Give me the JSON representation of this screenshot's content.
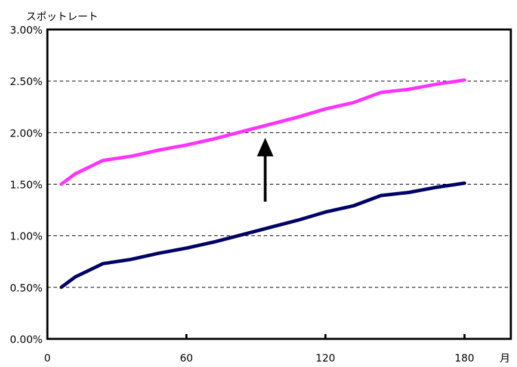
{
  "chart_data": {
    "type": "line",
    "ylabel": "スポットレート",
    "xunit": "月",
    "xlim": [
      0,
      200
    ],
    "ylim": [
      0,
      3.0
    ],
    "xticks": [
      0,
      60,
      120,
      180
    ],
    "yticks": [
      0.0,
      0.5,
      1.0,
      1.5,
      2.0,
      2.5,
      3.0
    ],
    "ytick_labels": [
      "0.00%",
      "0.50%",
      "1.00%",
      "1.50%",
      "2.00%",
      "2.50%",
      "3.00%"
    ],
    "grid": "horizontal dashed",
    "annotation": "upward arrow",
    "series": [
      {
        "color": "#ff33ff",
        "x": [
          6,
          12,
          24,
          36,
          48,
          60,
          72,
          84,
          96,
          108,
          120,
          132,
          144,
          156,
          168,
          180
        ],
        "values": [
          1.5,
          1.6,
          1.73,
          1.77,
          1.83,
          1.88,
          1.94,
          2.01,
          2.08,
          2.15,
          2.23,
          2.29,
          2.39,
          2.42,
          2.47,
          2.51
        ]
      },
      {
        "color": "#000066",
        "x": [
          6,
          12,
          24,
          36,
          48,
          60,
          72,
          84,
          96,
          108,
          120,
          132,
          144,
          156,
          168,
          180
        ],
        "values": [
          0.5,
          0.6,
          0.73,
          0.77,
          0.83,
          0.88,
          0.94,
          1.01,
          1.08,
          1.15,
          1.23,
          1.29,
          1.39,
          1.42,
          1.47,
          1.51
        ]
      }
    ]
  }
}
